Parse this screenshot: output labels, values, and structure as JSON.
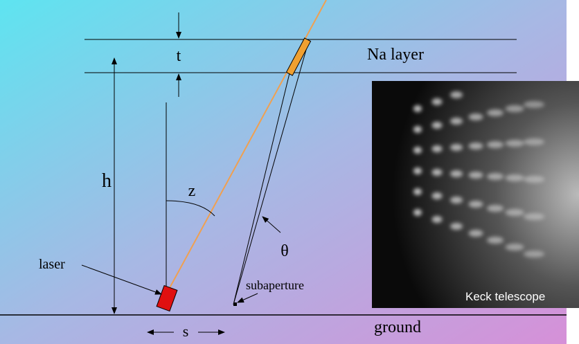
{
  "diagram": {
    "layer_label": "Na layer",
    "thickness_label": "t",
    "height_label": "h",
    "zenith_label": "z",
    "angle_label": "θ",
    "laser_label": "laser",
    "subaperture_label": "subaperture",
    "ground_label": "ground",
    "separation_label": "s"
  },
  "inset": {
    "caption": "Keck telescope"
  }
}
